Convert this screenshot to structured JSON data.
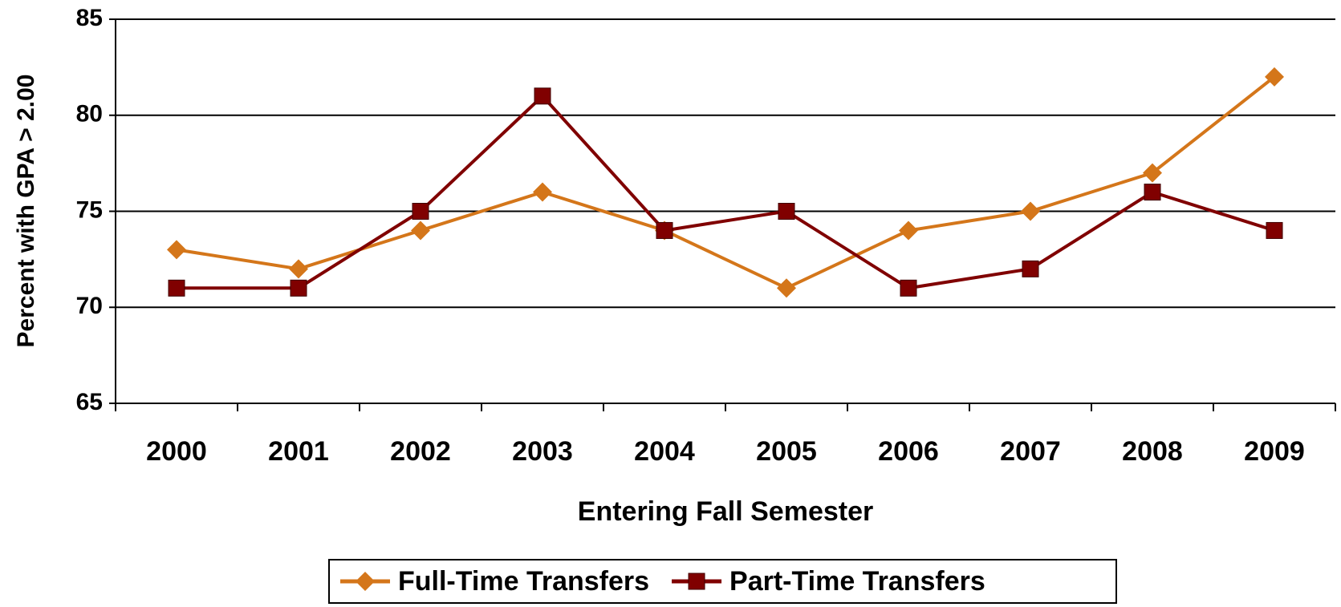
{
  "chart_data": {
    "type": "line",
    "x_label": "Entering Fall Semester",
    "y_label": "Percent with GPA > 2.00",
    "categories": [
      "2000",
      "2001",
      "2002",
      "2003",
      "2004",
      "2005",
      "2006",
      "2007",
      "2008",
      "2009"
    ],
    "series": [
      {
        "name": "Full-Time Transfers",
        "color": "#d4761a",
        "marker": "diamond",
        "values": [
          73,
          72,
          74,
          76,
          74,
          71,
          74,
          75,
          77,
          82
        ]
      },
      {
        "name": "Part-Time Transfers",
        "color": "#800000",
        "marker": "square",
        "values": [
          71,
          71,
          75,
          81,
          74,
          75,
          71,
          72,
          76,
          74
        ]
      }
    ],
    "ylim": [
      65,
      85
    ],
    "yticks": [
      65,
      70,
      75,
      80,
      85
    ],
    "grid": true,
    "legend": "bottom"
  }
}
